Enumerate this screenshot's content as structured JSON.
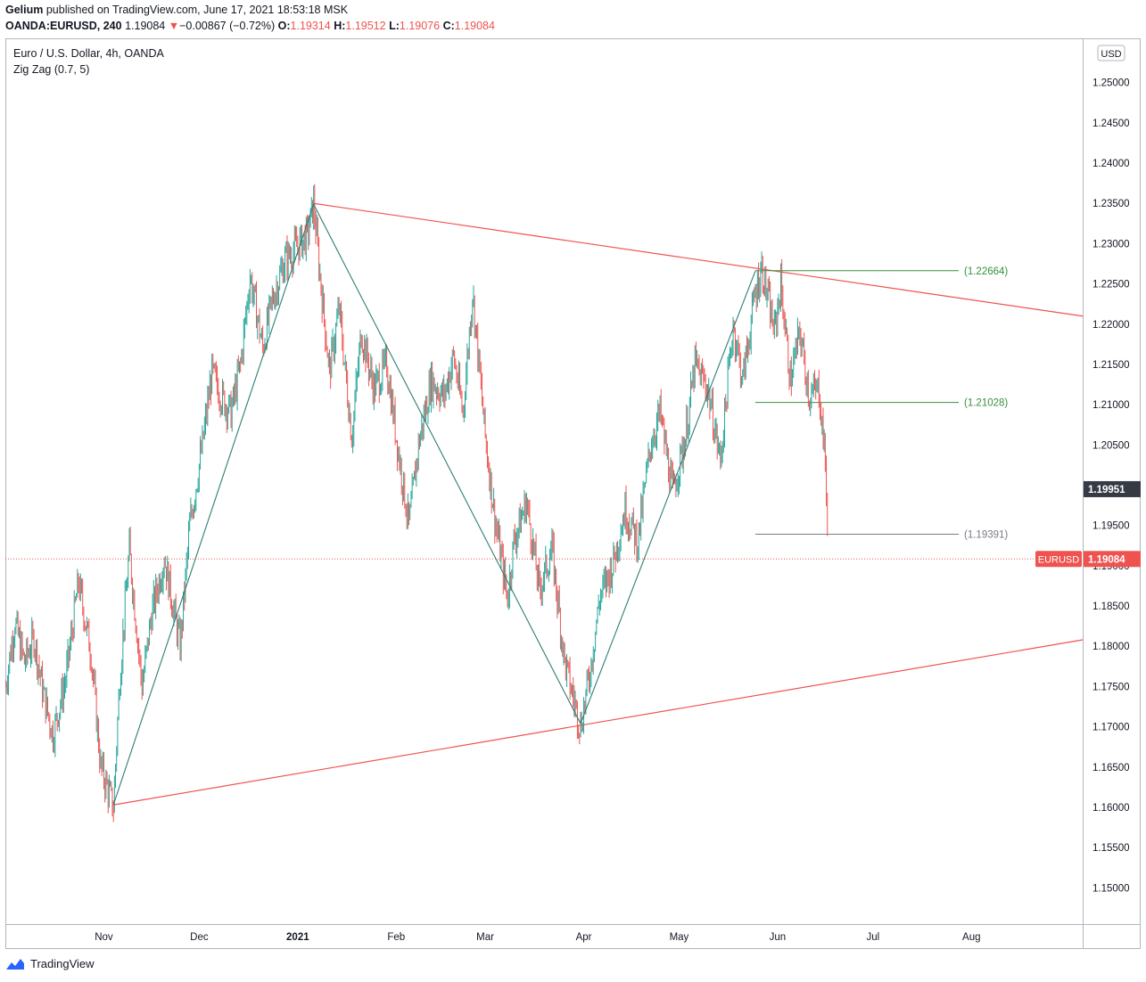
{
  "header": {
    "author": "Gelium",
    "published_text": "published on TradingView.com, June 17, 2021 18:53:18 MSK",
    "symbol": "OANDA:EURUSD, 240",
    "last": "1.19084",
    "change_arrow": "▼",
    "change": "−0.00867 (−0.72%)",
    "o_label": "O:",
    "o_value": "1.19314",
    "h_label": "H:",
    "h_value": "1.19512",
    "l_label": "L:",
    "l_value": "1.19076",
    "c_label": "C:",
    "c_value": "1.19084"
  },
  "legend": {
    "instrument": "Euro / U.S. Dollar, 4h, OANDA",
    "indicator": "Zig Zag (0.7, 5)"
  },
  "currency_badge": "USD",
  "footer": {
    "brand": "TradingView"
  },
  "colors": {
    "up": "#26a69a",
    "down": "#ef5350",
    "trendline": "#ef5350",
    "level_green": "#388e3c",
    "level_gray": "#787b86",
    "zigzag": "#2e7d74"
  },
  "chart_data": {
    "type": "candlestick",
    "title": "Euro / U.S. Dollar, 4h, OANDA",
    "y_axis": {
      "range": [
        1.1455,
        1.2555
      ],
      "ticks": [
        "1.15000",
        "1.15500",
        "1.16000",
        "1.16500",
        "1.17000",
        "1.17500",
        "1.18000",
        "1.18500",
        "1.19000",
        "1.19500",
        "1.20000",
        "1.20500",
        "1.21000",
        "1.21500",
        "1.22000",
        "1.22500",
        "1.23000",
        "1.23500",
        "1.24000",
        "1.24500",
        "1.25000"
      ],
      "tick_values": [
        1.15,
        1.155,
        1.16,
        1.165,
        1.17,
        1.175,
        1.18,
        1.185,
        1.19,
        1.195,
        1.2,
        1.205,
        1.21,
        1.215,
        1.22,
        1.225,
        1.23,
        1.235,
        1.24,
        1.245,
        1.25
      ],
      "side": "right"
    },
    "x_axis": {
      "range": [
        "2020-10-01",
        "2021-09-05"
      ],
      "labels": [
        {
          "text": "Nov",
          "date": "2020-11-01"
        },
        {
          "text": "Dec",
          "date": "2020-12-01"
        },
        {
          "text": "2021",
          "date": "2021-01-01",
          "bold": true
        },
        {
          "text": "Feb",
          "date": "2021-02-01"
        },
        {
          "text": "Mar",
          "date": "2021-03-01"
        },
        {
          "text": "Apr",
          "date": "2021-04-01"
        },
        {
          "text": "May",
          "date": "2021-05-01"
        },
        {
          "text": "Jun",
          "date": "2021-06-01"
        },
        {
          "text": "Jul",
          "date": "2021-07-01"
        },
        {
          "text": "Aug",
          "date": "2021-08-01"
        }
      ]
    },
    "price_path": [
      [
        "2020-10-01",
        1.175
      ],
      [
        "2020-10-04",
        1.183
      ],
      [
        "2020-10-07",
        1.178
      ],
      [
        "2020-10-10",
        1.181
      ],
      [
        "2020-10-13",
        1.174
      ],
      [
        "2020-10-16",
        1.169
      ],
      [
        "2020-10-20",
        1.176
      ],
      [
        "2020-10-24",
        1.188
      ],
      [
        "2020-10-28",
        1.179
      ],
      [
        "2020-10-31",
        1.165
      ],
      [
        "2020-11-04",
        1.16
      ],
      [
        "2020-11-06",
        1.176
      ],
      [
        "2020-11-09",
        1.192
      ],
      [
        "2020-11-13",
        1.175
      ],
      [
        "2020-11-16",
        1.184
      ],
      [
        "2020-11-20",
        1.191
      ],
      [
        "2020-11-25",
        1.18
      ],
      [
        "2020-11-28",
        1.195
      ],
      [
        "2020-12-02",
        1.205
      ],
      [
        "2020-12-05",
        1.214
      ],
      [
        "2020-12-08",
        1.211
      ],
      [
        "2020-12-11",
        1.209
      ],
      [
        "2020-12-14",
        1.215
      ],
      [
        "2020-12-17",
        1.226
      ],
      [
        "2020-12-21",
        1.217
      ],
      [
        "2020-12-24",
        1.223
      ],
      [
        "2020-12-28",
        1.228
      ],
      [
        "2021-01-04",
        1.231
      ],
      [
        "2021-01-06",
        1.235
      ],
      [
        "2021-01-08",
        1.226
      ],
      [
        "2021-01-11",
        1.214
      ],
      [
        "2021-01-14",
        1.222
      ],
      [
        "2021-01-18",
        1.206
      ],
      [
        "2021-01-21",
        1.219
      ],
      [
        "2021-01-25",
        1.212
      ],
      [
        "2021-01-29",
        1.215
      ],
      [
        "2021-02-01",
        1.206
      ],
      [
        "2021-02-05",
        1.195
      ],
      [
        "2021-02-08",
        1.205
      ],
      [
        "2021-02-12",
        1.213
      ],
      [
        "2021-02-16",
        1.211
      ],
      [
        "2021-02-19",
        1.216
      ],
      [
        "2021-02-22",
        1.209
      ],
      [
        "2021-02-25",
        1.224
      ],
      [
        "2021-03-01",
        1.206
      ],
      [
        "2021-03-04",
        1.196
      ],
      [
        "2021-03-08",
        1.186
      ],
      [
        "2021-03-10",
        1.193
      ],
      [
        "2021-03-14",
        1.198
      ],
      [
        "2021-03-18",
        1.187
      ],
      [
        "2021-03-22",
        1.192
      ],
      [
        "2021-03-26",
        1.178
      ],
      [
        "2021-03-31",
        1.17
      ],
      [
        "2021-04-03",
        1.177
      ],
      [
        "2021-04-06",
        1.186
      ],
      [
        "2021-04-10",
        1.19
      ],
      [
        "2021-04-14",
        1.197
      ],
      [
        "2021-04-18",
        1.193
      ],
      [
        "2021-04-22",
        1.205
      ],
      [
        "2021-04-25",
        1.209
      ],
      [
        "2021-04-29",
        1.199
      ],
      [
        "2021-05-03",
        1.206
      ],
      [
        "2021-05-06",
        1.215
      ],
      [
        "2021-05-10",
        1.212
      ],
      [
        "2021-05-14",
        1.203
      ],
      [
        "2021-05-18",
        1.22
      ],
      [
        "2021-05-21",
        1.213
      ],
      [
        "2021-05-25",
        1.224
      ],
      [
        "2021-05-27",
        1.227
      ],
      [
        "2021-05-31",
        1.219
      ],
      [
        "2021-06-02",
        1.225
      ],
      [
        "2021-06-05",
        1.213
      ],
      [
        "2021-06-08",
        1.219
      ],
      [
        "2021-06-11",
        1.211
      ],
      [
        "2021-06-14",
        1.212
      ],
      [
        "2021-06-16",
        1.203
      ],
      [
        "2021-06-17",
        1.1908
      ]
    ],
    "series": [
      {
        "type": "zigzag",
        "points": [
          [
            "2020-11-04",
            1.1603
          ],
          [
            "2021-01-06",
            1.2349
          ],
          [
            "2021-03-31",
            1.1704
          ],
          [
            "2021-05-25",
            1.2266
          ]
        ]
      }
    ],
    "trendlines": [
      {
        "from": [
          "2021-01-06",
          1.235
        ],
        "to": [
          "2021-09-05",
          1.221
        ]
      },
      {
        "from": [
          "2020-11-04",
          1.1603
        ],
        "to": [
          "2021-09-05",
          1.1808
        ]
      }
    ],
    "horizontal_levels": [
      {
        "label": "(1.22664)",
        "value": 1.22664,
        "color": "level_green"
      },
      {
        "label": "(1.21028)",
        "value": 1.21028,
        "color": "level_green"
      },
      {
        "label": "(1.19391)",
        "value": 1.19391,
        "color": "level_gray"
      }
    ],
    "price_labels": [
      {
        "value": 1.19951,
        "text": "1.19951",
        "style": "dark"
      },
      {
        "value": 1.19084,
        "text": "1.19084",
        "symbol": "EURUSD",
        "style": "red"
      }
    ],
    "last_price_line": 1.19084
  }
}
